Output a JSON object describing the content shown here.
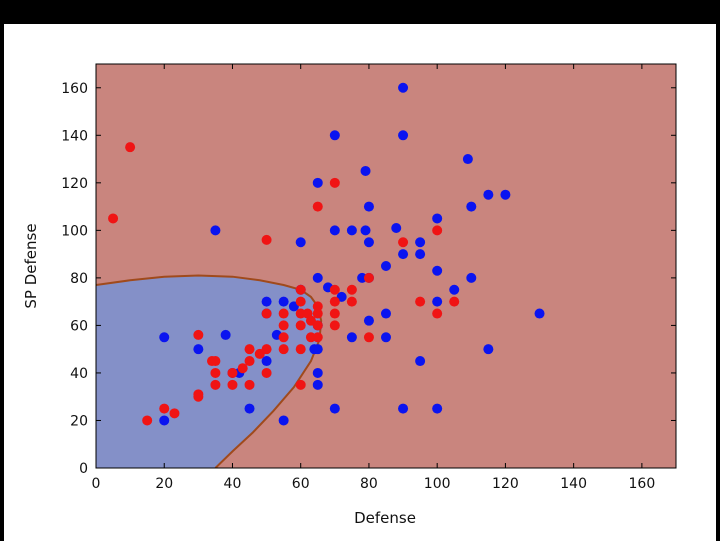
{
  "chart_data": {
    "type": "scatter",
    "title": "",
    "xlabel": "Defense",
    "ylabel": "SP Defense",
    "xlim": [
      0,
      170
    ],
    "ylim": [
      0,
      170
    ],
    "xticks": [
      0,
      20,
      40,
      60,
      80,
      100,
      120,
      140,
      160
    ],
    "yticks": [
      0,
      20,
      40,
      60,
      80,
      100,
      120,
      140,
      160
    ],
    "grid": false,
    "legend": "none",
    "background_region_color": "#c9857e",
    "decision_region_color": "#8490c8",
    "boundary_color": "#a04a1c",
    "decision_boundary": [
      [
        0,
        77
      ],
      [
        10,
        79
      ],
      [
        20,
        80.5
      ],
      [
        30,
        81
      ],
      [
        40,
        80.5
      ],
      [
        48,
        79
      ],
      [
        55,
        77
      ],
      [
        60,
        75
      ],
      [
        63,
        72
      ],
      [
        65,
        68
      ],
      [
        66,
        62
      ],
      [
        65.5,
        54
      ],
      [
        63,
        45
      ],
      [
        58,
        34
      ],
      [
        52,
        24
      ],
      [
        46,
        15
      ],
      [
        40,
        7
      ],
      [
        35,
        0
      ]
    ],
    "series": [
      {
        "color": "#0a14f0",
        "points": [
          [
            90,
            160
          ],
          [
            70,
            140
          ],
          [
            90,
            140
          ],
          [
            109,
            130
          ],
          [
            79,
            125
          ],
          [
            65,
            120
          ],
          [
            110,
            110
          ],
          [
            115,
            115
          ],
          [
            120,
            115
          ],
          [
            80,
            110
          ],
          [
            70,
            100
          ],
          [
            75,
            100
          ],
          [
            35,
            100
          ],
          [
            79,
            100
          ],
          [
            100,
            105
          ],
          [
            60,
            95
          ],
          [
            80,
            95
          ],
          [
            88,
            101
          ],
          [
            90,
            90
          ],
          [
            95,
            95
          ],
          [
            95,
            90
          ],
          [
            85,
            85
          ],
          [
            100,
            83
          ],
          [
            65,
            80
          ],
          [
            78,
            80
          ],
          [
            80,
            80
          ],
          [
            110,
            80
          ],
          [
            68,
            76
          ],
          [
            60,
            75
          ],
          [
            50,
            70
          ],
          [
            55,
            70
          ],
          [
            58,
            68
          ],
          [
            72,
            72
          ],
          [
            100,
            70
          ],
          [
            105,
            75
          ],
          [
            130,
            65
          ],
          [
            50,
            65
          ],
          [
            65,
            60
          ],
          [
            80,
            62
          ],
          [
            85,
            65
          ],
          [
            53,
            56
          ],
          [
            38,
            56
          ],
          [
            20,
            55
          ],
          [
            30,
            50
          ],
          [
            64,
            50
          ],
          [
            65,
            50
          ],
          [
            75,
            55
          ],
          [
            85,
            55
          ],
          [
            115,
            50
          ],
          [
            95,
            45
          ],
          [
            50,
            45
          ],
          [
            65,
            40
          ],
          [
            40,
            40
          ],
          [
            42,
            40
          ],
          [
            65,
            35
          ],
          [
            45,
            25
          ],
          [
            70,
            25
          ],
          [
            90,
            25
          ],
          [
            100,
            25
          ],
          [
            55,
            20
          ],
          [
            20,
            20
          ]
        ]
      },
      {
        "color": "#f01414",
        "points": [
          [
            10,
            135
          ],
          [
            70,
            120
          ],
          [
            65,
            110
          ],
          [
            5,
            105
          ],
          [
            50,
            96
          ],
          [
            90,
            95
          ],
          [
            100,
            100
          ],
          [
            80,
            80
          ],
          [
            60,
            75
          ],
          [
            70,
            75
          ],
          [
            75,
            75
          ],
          [
            60,
            70
          ],
          [
            65,
            68
          ],
          [
            70,
            70
          ],
          [
            75,
            70
          ],
          [
            95,
            70
          ],
          [
            105,
            70
          ],
          [
            50,
            65
          ],
          [
            55,
            65
          ],
          [
            60,
            65
          ],
          [
            62,
            65
          ],
          [
            65,
            65
          ],
          [
            70,
            65
          ],
          [
            100,
            65
          ],
          [
            55,
            60
          ],
          [
            60,
            60
          ],
          [
            63,
            62
          ],
          [
            65,
            60
          ],
          [
            70,
            60
          ],
          [
            30,
            56
          ],
          [
            55,
            55
          ],
          [
            63,
            55
          ],
          [
            65,
            55
          ],
          [
            80,
            55
          ],
          [
            45,
            50
          ],
          [
            48,
            48
          ],
          [
            50,
            50
          ],
          [
            55,
            50
          ],
          [
            60,
            50
          ],
          [
            34,
            45
          ],
          [
            35,
            45
          ],
          [
            45,
            45
          ],
          [
            35,
            40
          ],
          [
            40,
            40
          ],
          [
            43,
            42
          ],
          [
            50,
            40
          ],
          [
            35,
            35
          ],
          [
            40,
            35
          ],
          [
            45,
            35
          ],
          [
            60,
            35
          ],
          [
            30,
            31
          ],
          [
            30,
            30
          ],
          [
            20,
            25
          ],
          [
            23,
            23
          ],
          [
            15,
            20
          ]
        ]
      }
    ]
  }
}
